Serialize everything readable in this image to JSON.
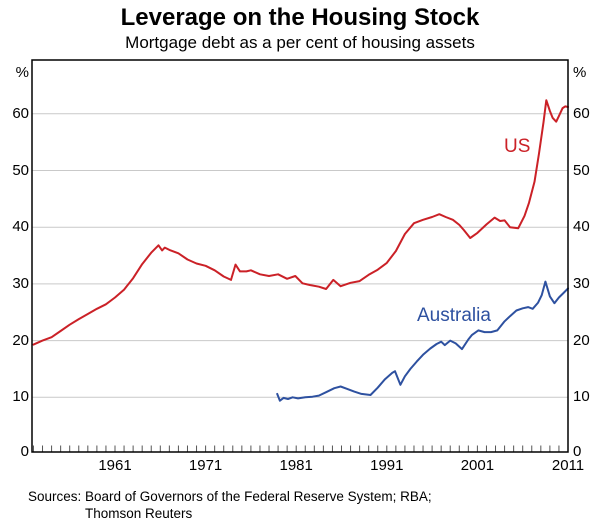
{
  "page": {
    "title": "Leverage on the Housing Stock",
    "subtitle": "Mortgage debt as a per cent of housing assets",
    "sources_line1": "Sources: Board of Governors of the Federal Reserve System; RBA;",
    "sources_line2": "Thomson Reuters"
  },
  "chart_data": {
    "type": "line",
    "title": "Leverage on the Housing Stock",
    "subtitle": "Mortgage debt as a per cent of housing assets",
    "unit_label": "%",
    "xlabel": "",
    "ylabel": "%",
    "ylim": [
      0,
      69
    ],
    "yticks": [
      0,
      10,
      20,
      30,
      40,
      50,
      60
    ],
    "x_decade_ticks": [
      1961,
      1971,
      1981,
      1991,
      2001,
      2011
    ],
    "x_minor_tick_start": 1952,
    "x_minor_tick_end": 2011,
    "xlim": [
      1951.8,
      2011
    ],
    "grid": true,
    "legend_position": "inline-labels",
    "series": [
      {
        "name": "US",
        "color": "#cb2127",
        "points": [
          [
            1952.0,
            19.3
          ],
          [
            1953,
            20.0
          ],
          [
            1954,
            20.6
          ],
          [
            1955,
            21.7
          ],
          [
            1956,
            22.8
          ],
          [
            1957,
            23.8
          ],
          [
            1958,
            24.7
          ],
          [
            1959,
            25.6
          ],
          [
            1960,
            26.4
          ],
          [
            1961,
            27.6
          ],
          [
            1962,
            29.0
          ],
          [
            1963,
            31.0
          ],
          [
            1964,
            33.5
          ],
          [
            1965,
            35.5
          ],
          [
            1965.8,
            36.8
          ],
          [
            1966.2,
            35.9
          ],
          [
            1966.5,
            36.4
          ],
          [
            1967,
            36.0
          ],
          [
            1968,
            35.4
          ],
          [
            1969,
            34.3
          ],
          [
            1970,
            33.6
          ],
          [
            1971,
            33.2
          ],
          [
            1972,
            32.4
          ],
          [
            1973,
            31.3
          ],
          [
            1973.8,
            30.7
          ],
          [
            1974.3,
            33.4
          ],
          [
            1974.8,
            32.2
          ],
          [
            1975.5,
            32.2
          ],
          [
            1976,
            32.4
          ],
          [
            1977,
            31.7
          ],
          [
            1978,
            31.4
          ],
          [
            1979,
            31.7
          ],
          [
            1980,
            30.9
          ],
          [
            1980.9,
            31.4
          ],
          [
            1981.7,
            30.1
          ],
          [
            1982.5,
            29.8
          ],
          [
            1983.5,
            29.5
          ],
          [
            1984.3,
            29.1
          ],
          [
            1985.1,
            30.7
          ],
          [
            1985.9,
            29.6
          ],
          [
            1987,
            30.2
          ],
          [
            1988,
            30.5
          ],
          [
            1989,
            31.6
          ],
          [
            1990,
            32.5
          ],
          [
            1991,
            33.7
          ],
          [
            1992,
            35.8
          ],
          [
            1993,
            38.8
          ],
          [
            1994,
            40.7
          ],
          [
            1995,
            41.3
          ],
          [
            1996,
            41.8
          ],
          [
            1996.8,
            42.3
          ],
          [
            1997.5,
            41.8
          ],
          [
            1998.3,
            41.3
          ],
          [
            1999,
            40.4
          ],
          [
            1999.5,
            39.5
          ],
          [
            2000.2,
            38.1
          ],
          [
            2001,
            39.0
          ],
          [
            2002,
            40.5
          ],
          [
            2002.9,
            41.7
          ],
          [
            2003.5,
            41.1
          ],
          [
            2004,
            41.2
          ],
          [
            2004.6,
            40.0
          ],
          [
            2005.5,
            39.8
          ],
          [
            2006.2,
            42.0
          ],
          [
            2006.7,
            44.3
          ],
          [
            2007.3,
            48.0
          ],
          [
            2007.8,
            53.0
          ],
          [
            2008.3,
            58.5
          ],
          [
            2008.6,
            62.4
          ],
          [
            2009.0,
            60.5
          ],
          [
            2009.3,
            59.3
          ],
          [
            2009.7,
            58.6
          ],
          [
            2010.0,
            59.6
          ],
          [
            2010.4,
            61.0
          ],
          [
            2010.7,
            61.3
          ],
          [
            2011,
            61.2
          ]
        ]
      },
      {
        "name": "Australia",
        "color": "#2e51a0",
        "points": [
          [
            1978.9,
            10.6
          ],
          [
            1979.2,
            9.4
          ],
          [
            1979.6,
            9.9
          ],
          [
            1980.1,
            9.7
          ],
          [
            1980.6,
            10.0
          ],
          [
            1981.2,
            9.8
          ],
          [
            1982,
            10.0
          ],
          [
            1982.8,
            10.1
          ],
          [
            1983.5,
            10.3
          ],
          [
            1984.3,
            10.9
          ],
          [
            1985.2,
            11.6
          ],
          [
            1985.9,
            11.9
          ],
          [
            1986.6,
            11.5
          ],
          [
            1987.4,
            11.0
          ],
          [
            1988.2,
            10.6
          ],
          [
            1989.2,
            10.4
          ],
          [
            1990,
            11.7
          ],
          [
            1990.8,
            13.2
          ],
          [
            1991.6,
            14.3
          ],
          [
            1991.9,
            14.6
          ],
          [
            1992.5,
            12.2
          ],
          [
            1993,
            13.7
          ],
          [
            1993.6,
            15.0
          ],
          [
            1994.3,
            16.3
          ],
          [
            1995,
            17.5
          ],
          [
            1995.8,
            18.6
          ],
          [
            1996.5,
            19.4
          ],
          [
            1997,
            19.8
          ],
          [
            1997.4,
            19.2
          ],
          [
            1998,
            20.0
          ],
          [
            1998.6,
            19.5
          ],
          [
            1999.3,
            18.5
          ],
          [
            2000,
            20.2
          ],
          [
            2000.4,
            21.0
          ],
          [
            2001.1,
            21.8
          ],
          [
            2001.8,
            21.5
          ],
          [
            2002.5,
            21.5
          ],
          [
            2003.2,
            21.8
          ],
          [
            2004,
            23.4
          ],
          [
            2004.6,
            24.3
          ],
          [
            2005.3,
            25.3
          ],
          [
            2006,
            25.7
          ],
          [
            2006.6,
            25.9
          ],
          [
            2007.1,
            25.6
          ],
          [
            2007.7,
            26.7
          ],
          [
            2008.1,
            28.0
          ],
          [
            2008.5,
            30.4
          ],
          [
            2009,
            27.8
          ],
          [
            2009.5,
            26.6
          ],
          [
            2010,
            27.6
          ],
          [
            2010.5,
            28.4
          ],
          [
            2011,
            29.2
          ]
        ]
      }
    ]
  }
}
